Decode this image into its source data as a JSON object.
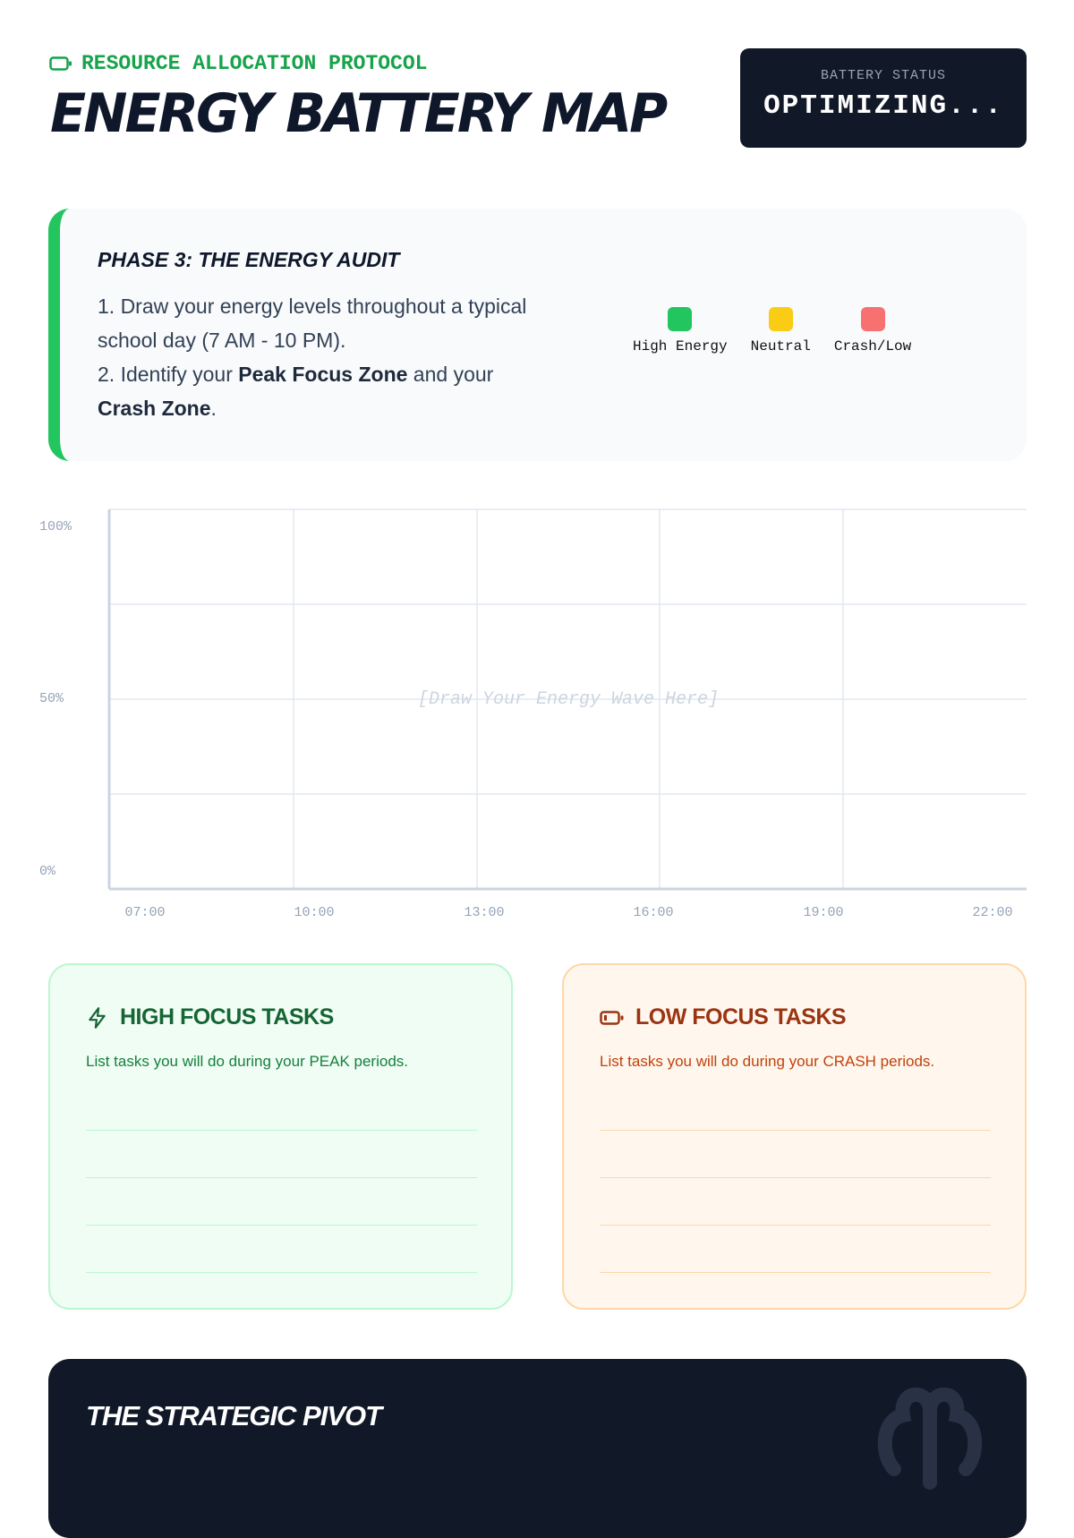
{
  "header": {
    "kicker": "RESOURCE ALLOCATION PROTOCOL",
    "title": "ENERGY BATTERY MAP",
    "kicker_icon": "battery-icon"
  },
  "status": {
    "label": "BATTERY STATUS",
    "value": "OPTIMIZING..."
  },
  "phase": {
    "title": "PHASE 3: THE ENERGY AUDIT",
    "line1": "1. Draw your energy levels throughout a typical school day (7 AM - 10 PM).",
    "line2_pre": "2. Identify your ",
    "line2_b1": "Peak Focus Zone",
    "line2_mid": " and your ",
    "line2_b2": "Crash Zone",
    "line2_post": ".",
    "legend": [
      {
        "label": "High Energy",
        "color": "#22c55e"
      },
      {
        "label": "Neutral",
        "color": "#facc15"
      },
      {
        "label": "Crash/Low",
        "color": "#f87171"
      }
    ]
  },
  "chart": {
    "y_ticks": [
      "100%",
      "50%",
      "0%"
    ],
    "x_ticks": [
      "07:00",
      "10:00",
      "13:00",
      "16:00",
      "19:00",
      "22:00"
    ],
    "placeholder": "[Draw Your Energy Wave Here]"
  },
  "high": {
    "title": "HIGH FOCUS TASKS",
    "icon": "lightning-icon",
    "desc": "List tasks you will do during your PEAK periods."
  },
  "low": {
    "title": "LOW FOCUS TASKS",
    "icon": "battery-low-icon",
    "desc": "List tasks you will do during your CRASH periods."
  },
  "pivot": {
    "title": "THE STRATEGIC PIVOT",
    "icon": "brain-icon"
  }
}
